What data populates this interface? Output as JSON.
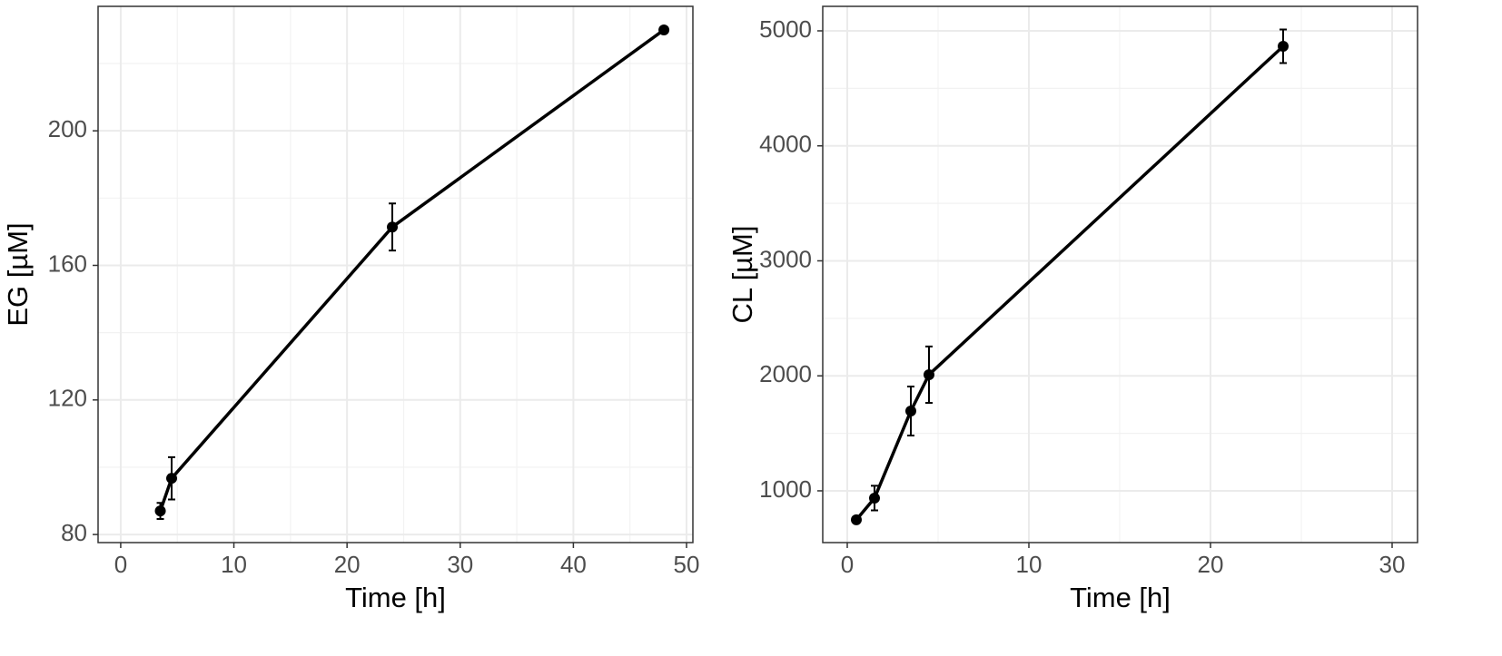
{
  "chart_data": [
    {
      "type": "line",
      "xlabel": "Time [h]",
      "ylabel": "EG [µM]",
      "x": [
        3.5,
        4.5,
        24,
        48
      ],
      "values": [
        87,
        96.7,
        171.4,
        230
      ],
      "errors": [
        2.4,
        6.3,
        7,
        0
      ],
      "color": "#000000",
      "xlim": [
        -2,
        50.56
      ],
      "xticks": [
        0,
        10,
        20,
        30,
        40,
        50
      ],
      "xminor": [
        5,
        15,
        25,
        35,
        45
      ],
      "ylim": [
        77.6,
        237
      ],
      "yticks": [
        80,
        120,
        160,
        200
      ],
      "yminor": [
        100,
        140,
        180,
        220
      ],
      "grid": true
    },
    {
      "type": "line",
      "xlabel": "Time [h]",
      "ylabel": "CL [µM]",
      "x": [
        0.5,
        1.5,
        3.5,
        4.5,
        24
      ],
      "values": [
        748,
        937,
        1694,
        2010,
        4866
      ],
      "errors": [
        0,
        107,
        213,
        245,
        146
      ],
      "color": "#000000",
      "xlim": [
        -1.35,
        31.4
      ],
      "xticks": [
        0,
        10,
        20,
        30
      ],
      "xminor": [
        5,
        15,
        25
      ],
      "ylim": [
        550,
        5213
      ],
      "yticks": [
        1000,
        2000,
        3000,
        4000,
        5000
      ],
      "yminor": [
        1500,
        2500,
        3500,
        4500
      ],
      "grid": true
    }
  ]
}
